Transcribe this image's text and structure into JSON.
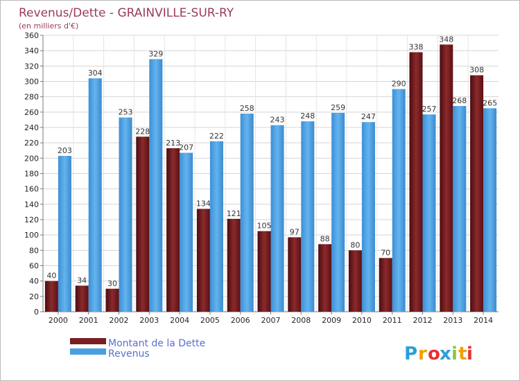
{
  "chart_data": {
    "type": "bar",
    "title": "Revenus/Dette - GRAINVILLE-SUR-RY",
    "subtitle": "(en milliers d'€)",
    "categories": [
      "2000",
      "2001",
      "2002",
      "2003",
      "2004",
      "2005",
      "2006",
      "2007",
      "2008",
      "2009",
      "2010",
      "2011",
      "2012",
      "2013",
      "2014"
    ],
    "series": [
      {
        "name": "Montant de la Dette",
        "color": "#7a1e22",
        "values": [
          40,
          34,
          30,
          228,
          213,
          134,
          121,
          105,
          97,
          88,
          80,
          70,
          338,
          348,
          308
        ]
      },
      {
        "name": "Revenus",
        "color": "#4a9fe0",
        "values": [
          203,
          304,
          253,
          329,
          207,
          222,
          258,
          243,
          248,
          259,
          247,
          290,
          257,
          268,
          265
        ]
      }
    ],
    "ylim": [
      0,
      360
    ],
    "yticks": [
      0,
      20,
      40,
      60,
      80,
      100,
      120,
      140,
      160,
      180,
      200,
      220,
      240,
      260,
      280,
      300,
      320,
      340,
      360
    ],
    "grid": true,
    "legend_position": "bottom-left"
  },
  "brand": {
    "letters": [
      "P",
      "r",
      "o",
      "x",
      "i",
      "t",
      "i"
    ],
    "colors": [
      "#2a9fd8",
      "#f0a000",
      "#e83030",
      "#2a9fd8",
      "#8cc63f",
      "#f0a000",
      "#e83030"
    ]
  }
}
